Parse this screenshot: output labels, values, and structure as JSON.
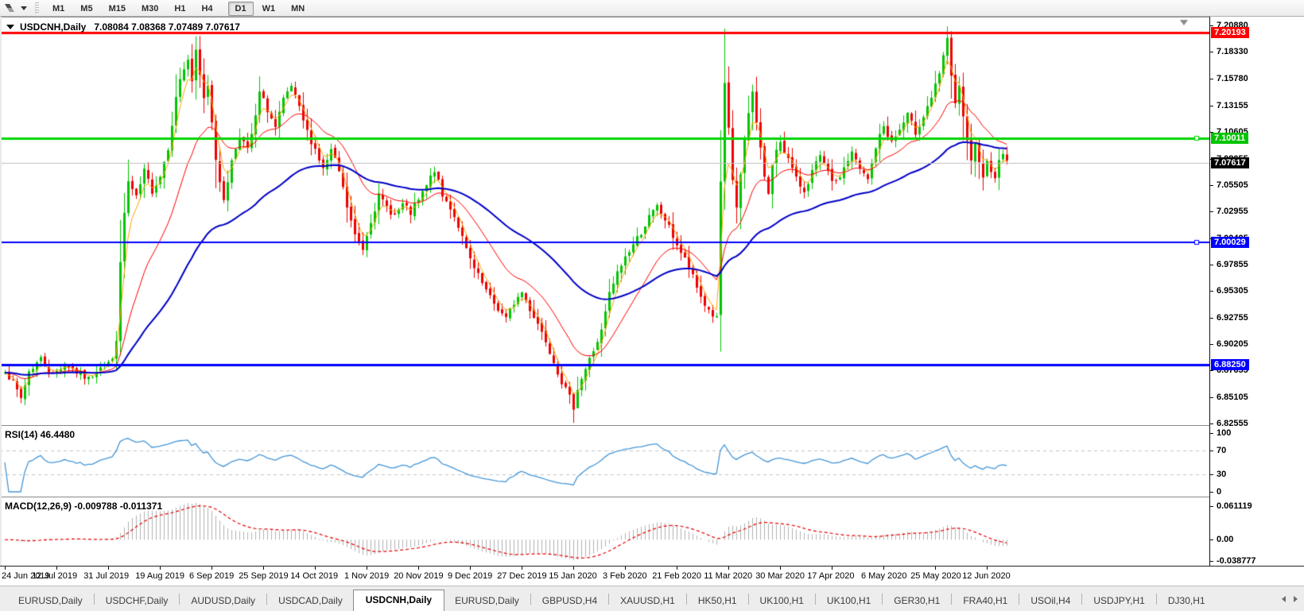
{
  "toolbar": {
    "tool_icon": "chart-tools-icon",
    "timeframes": [
      "M1",
      "M5",
      "M15",
      "M30",
      "H1",
      "H4",
      "D1",
      "W1",
      "MN"
    ],
    "active_timeframe": "D1"
  },
  "chart_header": {
    "menu_icon": "chart-menu-dropdown-icon",
    "symbol_title": "USDCNH,Daily",
    "ohlc_values": "7.08084 7.08368 7.07489 7.07617"
  },
  "price_axis": {
    "labels": [
      "7.20880",
      "7.18330",
      "7.15780",
      "7.13155",
      "7.10605",
      "7.08055",
      "7.05505",
      "7.02955",
      "7.00405",
      "6.97855",
      "6.95305",
      "6.92755",
      "6.90205",
      "6.87655",
      "6.85105",
      "6.82555"
    ],
    "price_at_top": 7.2165,
    "price_at_bottom": 6.824
  },
  "price_lines": [
    {
      "value": 7.20193,
      "label": "7.20193",
      "color": "#FF0000",
      "thickness": 3,
      "label_bg": "#FF0000",
      "label_fg": "#FFFFFF",
      "handle": false
    },
    {
      "value": 7.10011,
      "label": "7.10011",
      "color": "#00D500",
      "thickness": 3,
      "label_bg": "#00C400",
      "label_fg": "#FFFFFF",
      "handle": true
    },
    {
      "value": 7.07617,
      "label": "7.07617",
      "color": "#BFBFBF",
      "thickness": 1,
      "label_bg": "#000000",
      "label_fg": "#FFFFFF",
      "handle": false
    },
    {
      "value": 7.00029,
      "label": "7.00029",
      "color": "#0000FF",
      "thickness": 2,
      "label_bg": "#0000FF",
      "label_fg": "#FFFFFF",
      "handle": true
    },
    {
      "value": 6.8825,
      "label": "6.88250",
      "color": "#0000FF",
      "thickness": 3,
      "label_bg": "#0000FF",
      "label_fg": "#FFFFFF",
      "handle": false
    }
  ],
  "rsi_panel": {
    "label": "RSI(14) 46.4480",
    "axis_labels": [
      "100",
      "70",
      "30",
      "0"
    ],
    "axis_values": [
      100,
      70,
      30,
      0
    ],
    "upper_level": 70,
    "lower_level": 30,
    "line_color": "#4596D7",
    "level_color": "#C4C4C4"
  },
  "macd_panel": {
    "label": "MACD(12,26,9) -0.009788 -0.011371",
    "axis_top_label": "0.061119",
    "axis_zero_label": "0.00",
    "axis_bottom_label": "-0.038777",
    "histogram_color": "#B2B2B2",
    "signal_color": "#E40000"
  },
  "date_axis": {
    "labels": [
      "24 Jun 2019",
      "12 Jul 2019",
      "31 Jul 2019",
      "19 Aug 2019",
      "6 Sep 2019",
      "25 Sep 2019",
      "14 Oct 2019",
      "1 Nov 2019",
      "20 Nov 2019",
      "9 Dec 2019",
      "27 Dec 2019",
      "15 Jan 2020",
      "3 Feb 2020",
      "21 Feb 2020",
      "11 Mar 2020",
      "30 Mar 2020",
      "17 Apr 2020",
      "6 May 2020",
      "25 May 2020",
      "12 Jun 2020"
    ],
    "tick_step_candles": 13
  },
  "tabs": {
    "items": [
      "EURUSD,Daily",
      "USDCHF,Daily",
      "AUDUSD,Daily",
      "USDCAD,Daily",
      "USDCNH,Daily",
      "EURUSD,Daily",
      "GBPUSD,H4",
      "XAUUSD,H1",
      "HK50,H1",
      "UK100,H1",
      "UK100,H1",
      "GER30,H1",
      "FRA40,H1",
      "USOil,H4",
      "USDJPY,H1",
      "DJ30,H1"
    ],
    "active_index": 4,
    "scroll_left_icon": "tabs-scroll-left-icon",
    "scroll_right_icon": "tabs-scroll-right-icon"
  },
  "chart_data": {
    "type": "candlestick",
    "symbol": "USDCNH",
    "timeframe": "Daily",
    "first_visible_date": "24 Jun 2019",
    "last_visible_date": "12 Jun 2020",
    "up_color": "#00C400",
    "down_color": "#EE0000",
    "shift_marker_color": "#8c8c8c",
    "ma_lines": [
      {
        "name": "fast-ma",
        "period": 4,
        "color": "#FFA500",
        "width": 1
      },
      {
        "name": "mid-ma",
        "period": 18,
        "color": "#FF0000",
        "width": 1
      },
      {
        "name": "slow-ma",
        "period": 55,
        "color": "#0000C8",
        "width": 2
      }
    ],
    "noise_seed": 7,
    "close_anchors": [
      [
        0,
        6.878
      ],
      [
        2,
        6.864
      ],
      [
        4,
        6.85
      ],
      [
        6,
        6.876
      ],
      [
        9,
        6.888
      ],
      [
        12,
        6.872
      ],
      [
        15,
        6.884
      ],
      [
        18,
        6.875
      ],
      [
        21,
        6.868
      ],
      [
        24,
        6.882
      ],
      [
        27,
        6.886
      ],
      [
        28,
        6.908
      ],
      [
        29,
        6.978
      ],
      [
        30,
        7.028
      ],
      [
        31,
        7.058
      ],
      [
        33,
        7.042
      ],
      [
        35,
        7.068
      ],
      [
        37,
        7.05
      ],
      [
        39,
        7.064
      ],
      [
        41,
        7.092
      ],
      [
        43,
        7.138
      ],
      [
        44,
        7.158
      ],
      [
        46,
        7.176
      ],
      [
        47,
        7.152
      ],
      [
        48,
        7.184
      ],
      [
        49,
        7.16
      ],
      [
        50,
        7.14
      ],
      [
        51,
        7.152
      ],
      [
        52,
        7.118
      ],
      [
        53,
        7.082
      ],
      [
        54,
        7.055
      ],
      [
        55,
        7.042
      ],
      [
        57,
        7.078
      ],
      [
        59,
        7.104
      ],
      [
        61,
        7.088
      ],
      [
        63,
        7.12
      ],
      [
        64,
        7.144
      ],
      [
        66,
        7.128
      ],
      [
        68,
        7.11
      ],
      [
        70,
        7.136
      ],
      [
        72,
        7.15
      ],
      [
        74,
        7.128
      ],
      [
        76,
        7.106
      ],
      [
        78,
        7.09
      ],
      [
        80,
        7.07
      ],
      [
        82,
        7.088
      ],
      [
        84,
        7.068
      ],
      [
        86,
        7.034
      ],
      [
        88,
        7.006
      ],
      [
        90,
        6.994
      ],
      [
        92,
        7.022
      ],
      [
        94,
        7.044
      ],
      [
        96,
        7.034
      ],
      [
        98,
        7.026
      ],
      [
        100,
        7.036
      ],
      [
        102,
        7.028
      ],
      [
        104,
        7.04
      ],
      [
        106,
        7.054
      ],
      [
        108,
        7.07
      ],
      [
        110,
        7.044
      ],
      [
        112,
        7.034
      ],
      [
        114,
        7.016
      ],
      [
        116,
        6.992
      ],
      [
        118,
        6.974
      ],
      [
        120,
        6.96
      ],
      [
        122,
        6.946
      ],
      [
        124,
        6.936
      ],
      [
        126,
        6.926
      ],
      [
        128,
        6.942
      ],
      [
        130,
        6.952
      ],
      [
        132,
        6.936
      ],
      [
        134,
        6.922
      ],
      [
        136,
        6.906
      ],
      [
        138,
        6.886
      ],
      [
        140,
        6.866
      ],
      [
        142,
        6.85
      ],
      [
        143,
        6.842
      ],
      [
        144,
        6.86
      ],
      [
        146,
        6.878
      ],
      [
        148,
        6.896
      ],
      [
        150,
        6.914
      ],
      [
        152,
        6.95
      ],
      [
        154,
        6.97
      ],
      [
        156,
        6.986
      ],
      [
        158,
        6.998
      ],
      [
        160,
        7.01
      ],
      [
        162,
        7.024
      ],
      [
        164,
        7.034
      ],
      [
        166,
        7.022
      ],
      [
        168,
        7.006
      ],
      [
        170,
        6.99
      ],
      [
        172,
        6.976
      ],
      [
        174,
        6.956
      ],
      [
        176,
        6.94
      ],
      [
        178,
        6.93
      ],
      [
        179,
        6.926
      ],
      [
        180,
        7.058
      ],
      [
        181,
        7.15
      ],
      [
        182,
        7.108
      ],
      [
        183,
        7.06
      ],
      [
        184,
        7.034
      ],
      [
        185,
        7.064
      ],
      [
        186,
        7.096
      ],
      [
        187,
        7.124
      ],
      [
        188,
        7.144
      ],
      [
        189,
        7.118
      ],
      [
        190,
        7.09
      ],
      [
        191,
        7.064
      ],
      [
        192,
        7.046
      ],
      [
        193,
        7.072
      ],
      [
        194,
        7.09
      ],
      [
        195,
        7.098
      ],
      [
        197,
        7.08
      ],
      [
        199,
        7.06
      ],
      [
        201,
        7.05
      ],
      [
        203,
        7.068
      ],
      [
        205,
        7.082
      ],
      [
        207,
        7.066
      ],
      [
        209,
        7.056
      ],
      [
        211,
        7.072
      ],
      [
        213,
        7.086
      ],
      [
        215,
        7.07
      ],
      [
        217,
        7.06
      ],
      [
        219,
        7.092
      ],
      [
        221,
        7.112
      ],
      [
        223,
        7.096
      ],
      [
        225,
        7.108
      ],
      [
        227,
        7.122
      ],
      [
        229,
        7.106
      ],
      [
        231,
        7.122
      ],
      [
        233,
        7.14
      ],
      [
        235,
        7.16
      ],
      [
        236,
        7.18
      ],
      [
        237,
        7.194
      ],
      [
        238,
        7.162
      ],
      [
        239,
        7.134
      ],
      [
        240,
        7.148
      ],
      [
        241,
        7.12
      ],
      [
        242,
        7.096
      ],
      [
        243,
        7.08
      ],
      [
        244,
        7.092
      ],
      [
        245,
        7.074
      ],
      [
        246,
        7.06
      ],
      [
        247,
        7.082
      ],
      [
        248,
        7.07
      ],
      [
        249,
        7.06
      ],
      [
        250,
        7.082
      ],
      [
        251,
        7.088
      ],
      [
        252,
        7.076
      ]
    ]
  }
}
